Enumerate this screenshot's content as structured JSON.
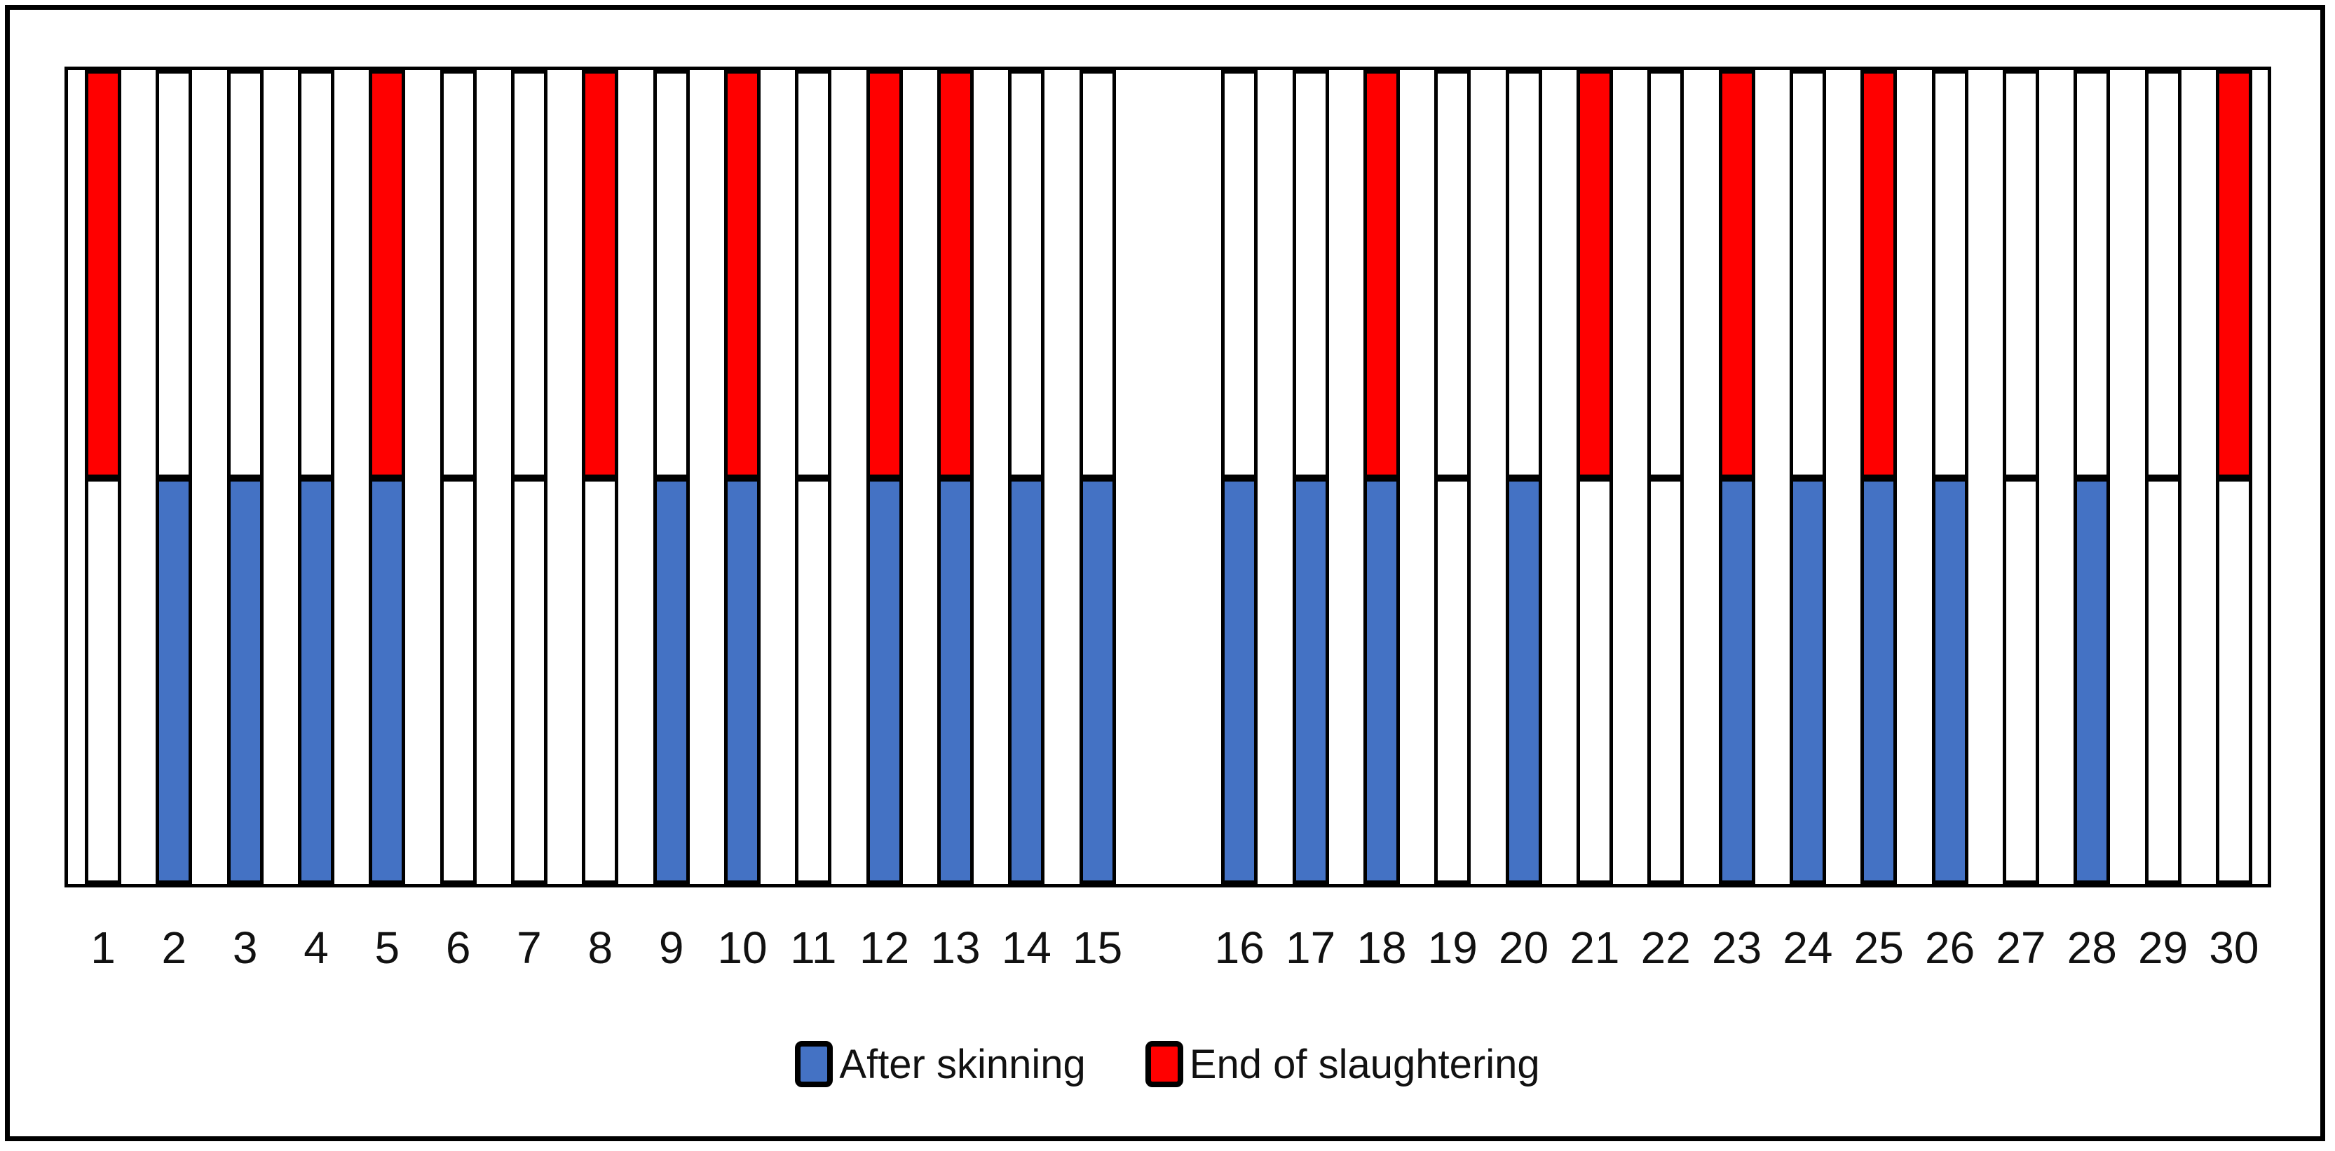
{
  "chart_data": {
    "type": "bar",
    "subtype": "binary presence chart: full-height outlined columns split at mid-line; top half fills red when positive, bottom half fills blue when positive",
    "title": "",
    "xlabel": "",
    "ylabel": "",
    "y_axis": "none shown (no ticks, no gridlines)",
    "legend_position": "bottom-center",
    "outline_color": "#000000",
    "empty_fill": "#ffffff",
    "group_break_after_index": 15,
    "categories": [
      "1",
      "2",
      "3",
      "4",
      "5",
      "6",
      "7",
      "8",
      "9",
      "10",
      "11",
      "12",
      "13",
      "14",
      "15",
      "16",
      "17",
      "18",
      "19",
      "20",
      "21",
      "22",
      "23",
      "24",
      "25",
      "26",
      "27",
      "28",
      "29",
      "30"
    ],
    "series": [
      {
        "name": "After skinning",
        "color": "#4472C4",
        "half": "bottom",
        "values": [
          0,
          1,
          1,
          1,
          1,
          0,
          0,
          0,
          1,
          1,
          0,
          1,
          1,
          1,
          1,
          1,
          1,
          1,
          0,
          1,
          0,
          0,
          1,
          1,
          1,
          1,
          0,
          1,
          0,
          0
        ]
      },
      {
        "name": "End of slaughtering",
        "color": "#FF0000",
        "half": "top",
        "values": [
          1,
          0,
          0,
          0,
          1,
          0,
          0,
          1,
          0,
          1,
          0,
          1,
          1,
          0,
          0,
          0,
          0,
          1,
          0,
          0,
          1,
          0,
          1,
          0,
          1,
          0,
          0,
          0,
          0,
          1
        ]
      }
    ]
  }
}
